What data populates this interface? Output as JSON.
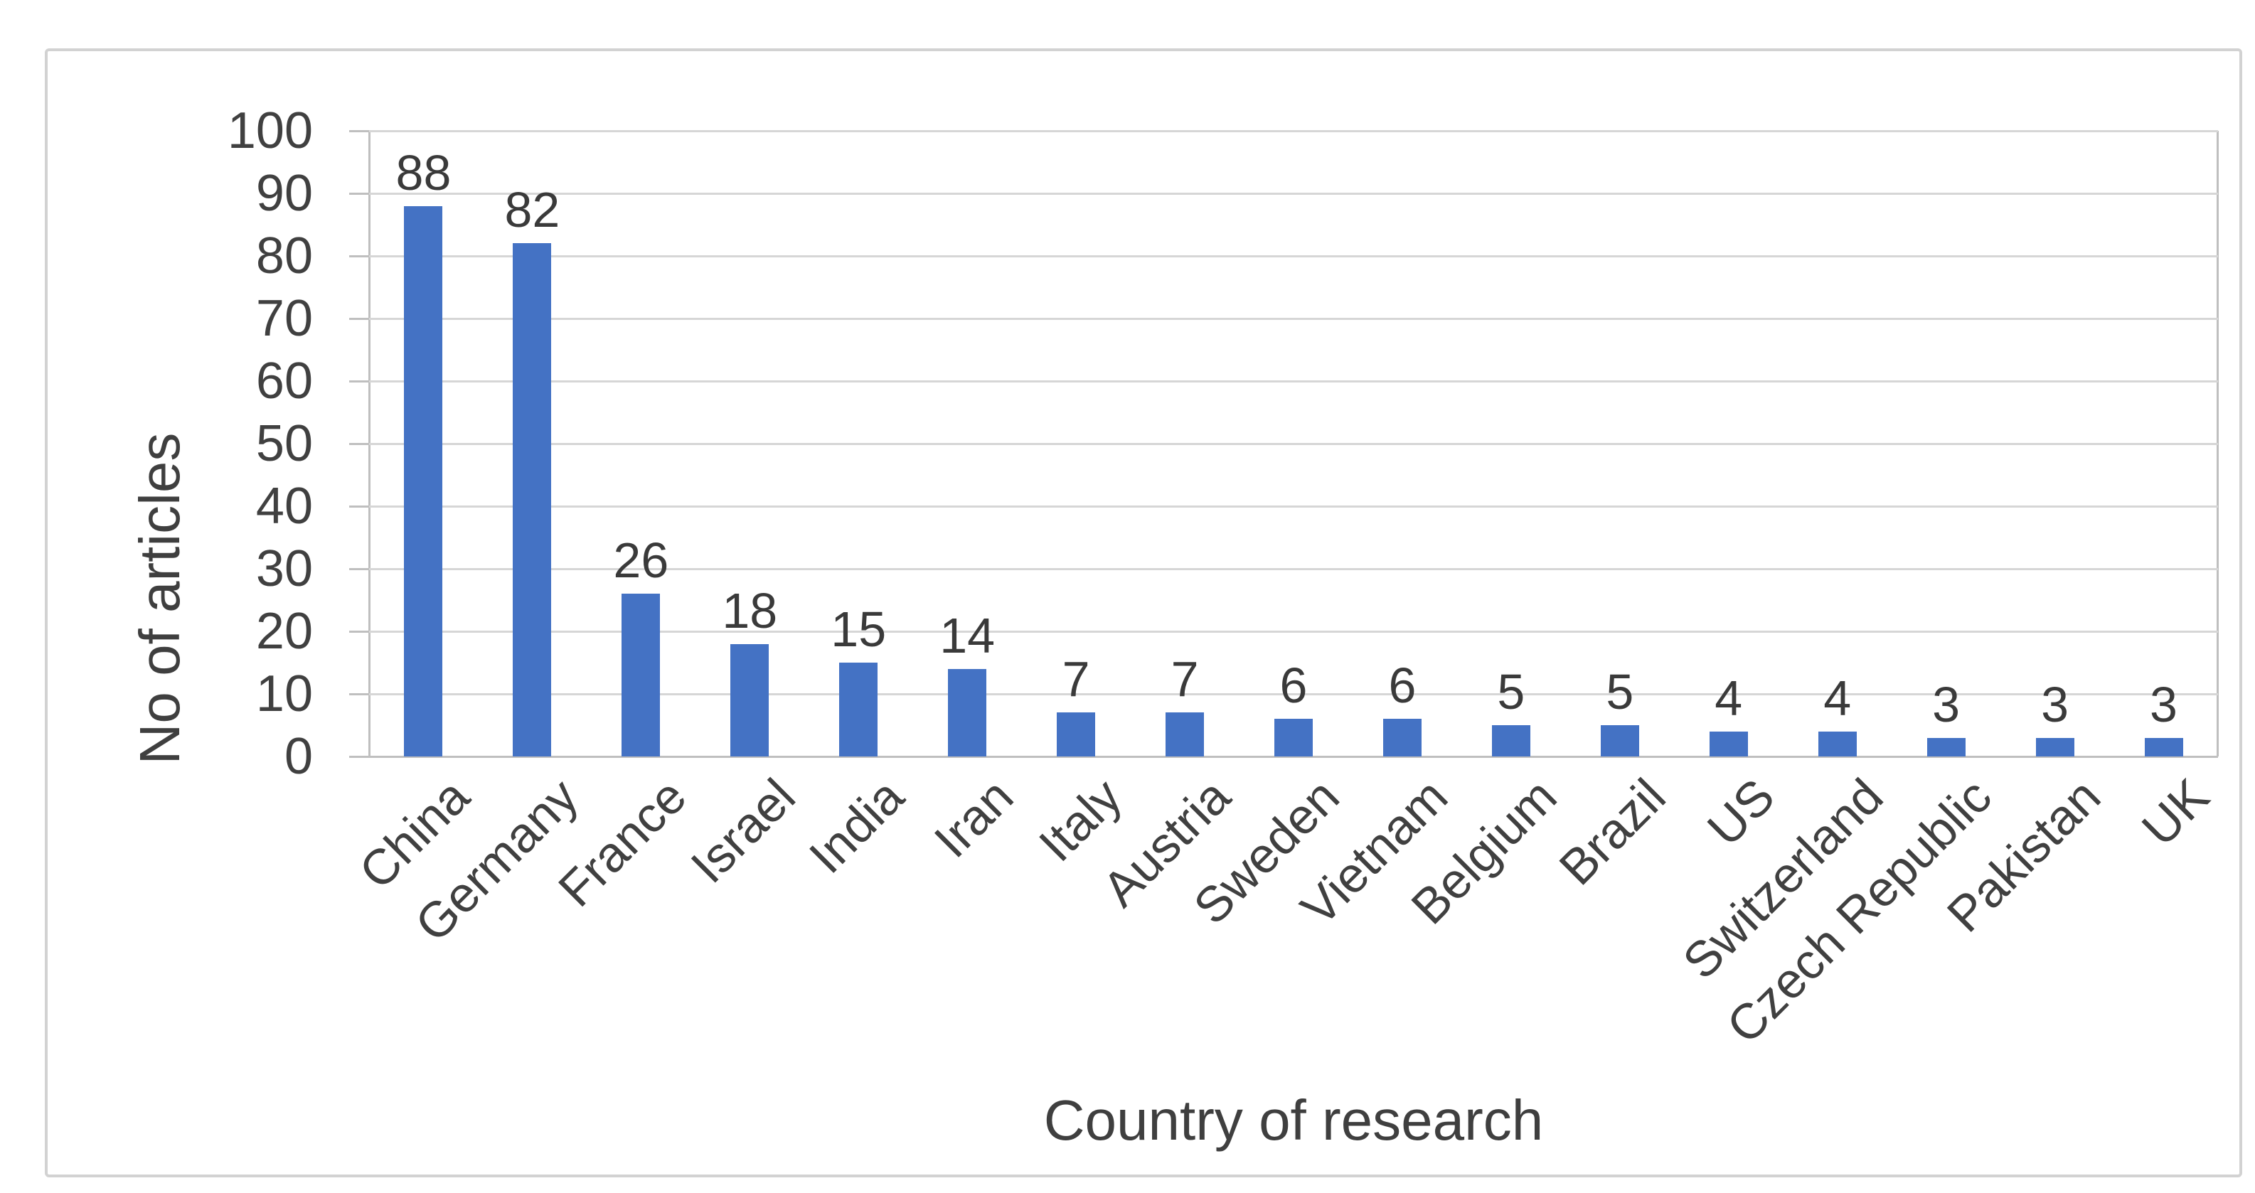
{
  "chart_data": {
    "type": "bar",
    "categories": [
      "China",
      "Germany",
      "France",
      "Israel",
      "India",
      "Iran",
      "Italy",
      "Austria",
      "Sweden",
      "Vietnam",
      "Belgium",
      "Brazil",
      "US",
      "Switzerland",
      "Czech Republic",
      "Pakistan",
      "UK"
    ],
    "values": [
      88,
      82,
      26,
      18,
      15,
      14,
      7,
      7,
      6,
      6,
      5,
      5,
      4,
      4,
      3,
      3,
      3
    ],
    "title": "",
    "xlabel": "Country of research",
    "ylabel": "No of articles",
    "ylim": [
      0,
      100
    ],
    "ytick_step": 10,
    "grid": true,
    "legend": false,
    "data_labels": "outside-end",
    "x_label_rotation_deg": 45,
    "bar_color": "#4472c4",
    "gridline_color": "#d6d6d6",
    "axis_line_color": "#bfbfbf",
    "text_color": "#404040",
    "frame_border_color": "#d2d2d2"
  }
}
